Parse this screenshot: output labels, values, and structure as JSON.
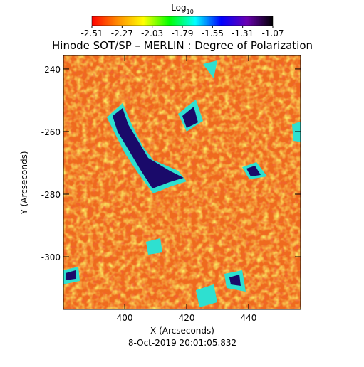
{
  "chart_data": {
    "type": "heatmap",
    "title": "Hinode SOT/SP – MERLIN : Degree of Polarization",
    "x_label": "X (Arcseconds)",
    "y_label": "Y (Arcseconds)",
    "footer": "8-Oct-2019 20:01:05.832",
    "colorbar_label": "Log",
    "colorbar_label_sub": "10",
    "colorscale": [
      "#ff0000",
      "#ff8c00",
      "#ffff00",
      "#00ff00",
      "#00ffff",
      "#0000ff",
      "#6a00b0",
      "#000000"
    ],
    "clim": [
      -2.51,
      -1.07
    ],
    "cticks": [
      -2.51,
      -2.27,
      -2.03,
      -1.79,
      -1.55,
      -1.31,
      -1.07
    ],
    "xlim": [
      380.2,
      456.8
    ],
    "xticks": [
      400,
      420,
      440
    ],
    "ylim": [
      -316.8,
      -235.7
    ],
    "yticks": [
      -240,
      -260,
      -280,
      -300
    ]
  }
}
